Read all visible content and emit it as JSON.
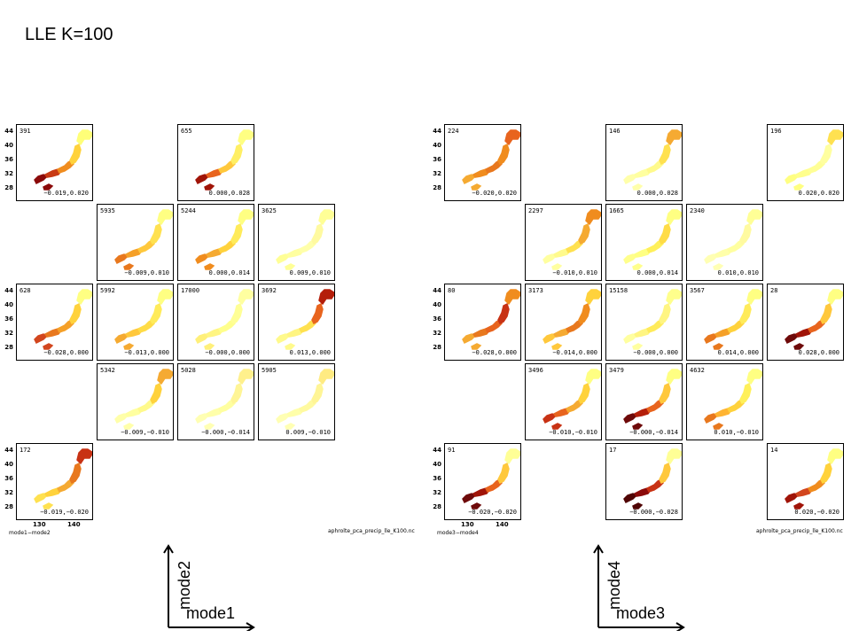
{
  "title": "LLE K=100",
  "blocks": [
    {
      "id": "left",
      "x_ticks": [
        "130",
        "140"
      ],
      "y_ticks": [
        "44",
        "40",
        "36",
        "32",
        "28"
      ],
      "footer_left": "mode1−mode2",
      "footer_right": "aphrolte_pca_precip_lle_K100.nc",
      "axis_x": "mode1",
      "axis_y": "mode2",
      "panels": [
        {
          "row": 0,
          "col": 0,
          "count": "391",
          "coord": "−0.019,0.020",
          "colors": [
            "#8b0a0a",
            "#c83a14",
            "#f08c1e",
            "#ffd23c",
            "#ffff78"
          ]
        },
        {
          "row": 0,
          "col": 2,
          "count": "655",
          "coord": "0.000,0.028",
          "colors": [
            "#a01408",
            "#e8641e",
            "#ffc83c",
            "#ffef64",
            "#ffff82"
          ]
        },
        {
          "row": 1,
          "col": 1,
          "count": "5935",
          "coord": "−0.009,0.010",
          "colors": [
            "#e8781e",
            "#f5a028",
            "#ffc83c",
            "#ffe150",
            "#ffff82"
          ]
        },
        {
          "row": 1,
          "col": 2,
          "count": "5244",
          "coord": "0.000,0.014",
          "colors": [
            "#f08c1e",
            "#f5aa32",
            "#ffd23c",
            "#ffeb5a",
            "#ffff82"
          ]
        },
        {
          "row": 1,
          "col": 3,
          "count": "3625",
          "coord": "0.009,0.010",
          "colors": [
            "#ffff96",
            "#ffffa0",
            "#ffffaa",
            "#fffaa0",
            "#ffff96"
          ]
        },
        {
          "row": 2,
          "col": 0,
          "count": "628",
          "coord": "−0.028,0.000",
          "colors": [
            "#d2461e",
            "#e8781e",
            "#f5a028",
            "#ffd23c",
            "#ffff82"
          ]
        },
        {
          "row": 2,
          "col": 1,
          "count": "5992",
          "coord": "−0.013,0.000",
          "colors": [
            "#f5aa32",
            "#ffc83c",
            "#ffdc46",
            "#ffeb5a",
            "#ffff82"
          ]
        },
        {
          "row": 2,
          "col": 2,
          "count": "17000",
          "coord": "−0.000,0.000",
          "colors": [
            "#fff07a",
            "#fff582",
            "#ffff8c",
            "#ffff96",
            "#ffffa0"
          ]
        },
        {
          "row": 2,
          "col": 3,
          "count": "3692",
          "coord": "0.013,0.000",
          "colors": [
            "#fffa8c",
            "#fff582",
            "#ffe150",
            "#e8641e",
            "#b41e0a"
          ]
        },
        {
          "row": 3,
          "col": 1,
          "count": "5342",
          "coord": "−0.009,−0.010",
          "colors": [
            "#ffffaa",
            "#ffffa0",
            "#fffa8c",
            "#ffd23c",
            "#f5aa32"
          ]
        },
        {
          "row": 3,
          "col": 2,
          "count": "5028",
          "coord": "−0.000,−0.014",
          "colors": [
            "#ffffb4",
            "#ffffaa",
            "#ffffa0",
            "#fff596",
            "#fff08c"
          ]
        },
        {
          "row": 3,
          "col": 3,
          "count": "5905",
          "coord": "0.009,−0.010",
          "colors": [
            "#ffffb4",
            "#ffffaa",
            "#fffaa0",
            "#fff596",
            "#ffeb82"
          ]
        },
        {
          "row": 4,
          "col": 0,
          "count": "172",
          "coord": "−0.019,−0.020",
          "colors": [
            "#ffe150",
            "#ffd23c",
            "#f5aa32",
            "#e8781e",
            "#c83214"
          ]
        }
      ]
    },
    {
      "id": "right",
      "x_ticks": [
        "130",
        "140"
      ],
      "y_ticks": [
        "44",
        "40",
        "36",
        "32",
        "28"
      ],
      "footer_left": "mode3−mode4",
      "footer_right": "aphrolte_pca_precip_lle_K100.nc",
      "axis_x": "mode3",
      "axis_y": "mode4",
      "panels": [
        {
          "row": 0,
          "col": 0,
          "count": "224",
          "coord": "−0.020,0.020",
          "colors": [
            "#f5aa32",
            "#f08c1e",
            "#e8781e",
            "#f08c1e",
            "#e8641e"
          ]
        },
        {
          "row": 0,
          "col": 2,
          "count": "146",
          "coord": "0.000,0.028",
          "colors": [
            "#ffffaa",
            "#ffffa0",
            "#fffa8c",
            "#ffe150",
            "#f5aa32"
          ]
        },
        {
          "row": 0,
          "col": 4,
          "count": "196",
          "coord": "0.020,0.020",
          "colors": [
            "#ffff82",
            "#ffff8c",
            "#ffff96",
            "#ffffa0",
            "#ffe150"
          ]
        },
        {
          "row": 1,
          "col": 1,
          "count": "2297",
          "coord": "−0.010,0.010",
          "colors": [
            "#ffffa0",
            "#fffa8c",
            "#ffe150",
            "#f5aa32",
            "#f08c1e"
          ]
        },
        {
          "row": 1,
          "col": 2,
          "count": "1665",
          "coord": "0.000,0.014",
          "colors": [
            "#ffff8c",
            "#ffff82",
            "#fff05a",
            "#ffdc46",
            "#ffff82"
          ]
        },
        {
          "row": 1,
          "col": 3,
          "count": "2340",
          "coord": "0.010,0.010",
          "colors": [
            "#ffffb4",
            "#ffffaa",
            "#ffffa0",
            "#fffaa0",
            "#ffff96"
          ]
        },
        {
          "row": 2,
          "col": 0,
          "count": "80",
          "coord": "−0.028,0.000",
          "colors": [
            "#f5aa32",
            "#e8781e",
            "#e8641e",
            "#c83214",
            "#f08c1e"
          ]
        },
        {
          "row": 2,
          "col": 1,
          "count": "3173",
          "coord": "−0.014,0.000",
          "colors": [
            "#ffc83c",
            "#f5aa32",
            "#e8781e",
            "#f08c1e",
            "#ffd23c"
          ]
        },
        {
          "row": 2,
          "col": 2,
          "count": "15158",
          "coord": "−0.000,0.000",
          "colors": [
            "#ffffa0",
            "#fff582",
            "#ffeb5a",
            "#fff582",
            "#ffff8c"
          ]
        },
        {
          "row": 2,
          "col": 3,
          "count": "3567",
          "coord": "0.014,0.000",
          "colors": [
            "#e8781e",
            "#f5a028",
            "#ffd23c",
            "#ffeb5a",
            "#ffff82"
          ]
        },
        {
          "row": 2,
          "col": 4,
          "count": "28",
          "coord": "0.028,0.000",
          "colors": [
            "#6e0a0a",
            "#a01408",
            "#e8641e",
            "#ffc83c",
            "#ffff82"
          ]
        },
        {
          "row": 3,
          "col": 1,
          "count": "3496",
          "coord": "−0.010,−0.010",
          "colors": [
            "#c83214",
            "#e8641e",
            "#f5aa32",
            "#ffd23c",
            "#ffff82"
          ]
        },
        {
          "row": 3,
          "col": 2,
          "count": "3479",
          "coord": "−0.000,−0.014",
          "colors": [
            "#6e0a0a",
            "#b41e0a",
            "#e8641e",
            "#ffc83c",
            "#ffff82"
          ]
        },
        {
          "row": 3,
          "col": 3,
          "count": "4632",
          "coord": "0.010,−0.010",
          "colors": [
            "#e8781e",
            "#ffb432",
            "#ffd23c",
            "#fff05a",
            "#ffff82"
          ]
        },
        {
          "row": 4,
          "col": 0,
          "count": "91",
          "coord": "−0.020,−0.020",
          "colors": [
            "#6e0a0a",
            "#a01408",
            "#e8641e",
            "#ffc83c",
            "#ffff96"
          ]
        },
        {
          "row": 4,
          "col": 2,
          "count": "17",
          "coord": "−0.000,−0.028",
          "colors": [
            "#500505",
            "#8b0a0a",
            "#c83214",
            "#ffc83c",
            "#ffff96"
          ]
        },
        {
          "row": 4,
          "col": 4,
          "count": "14",
          "coord": "0.020,−0.020",
          "colors": [
            "#a01408",
            "#d2461e",
            "#f08c1e",
            "#ffd23c",
            "#ffff82"
          ]
        }
      ]
    }
  ]
}
